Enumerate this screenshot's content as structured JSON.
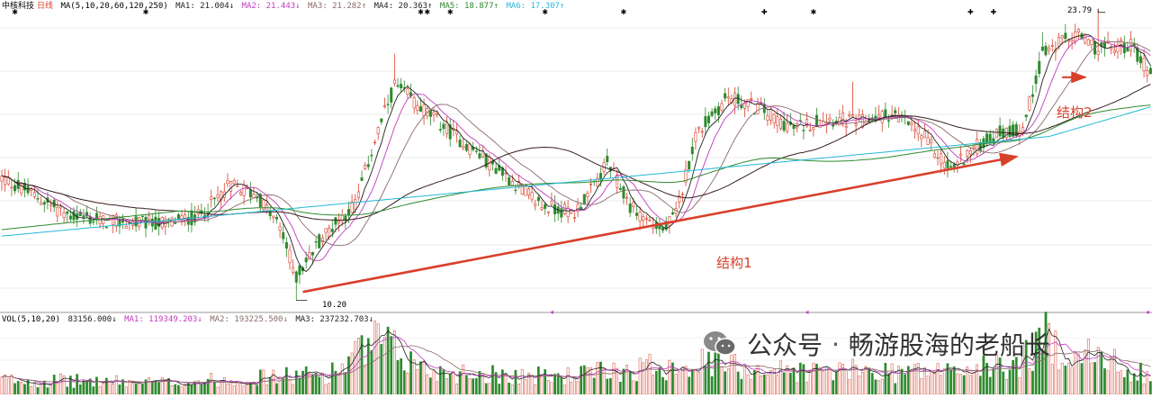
{
  "legend_main": {
    "name": "中核科技",
    "period": "日线",
    "ma_spec": "MA(5,10,20,60,120,250)",
    "items": [
      {
        "label": "MA1: 21.004↓",
        "color": "#222222"
      },
      {
        "label": "MA2: 21.443↓",
        "color": "#c03bc0"
      },
      {
        "label": "MA3: 21.282↑",
        "color": "#8a6a6a"
      },
      {
        "label": "MA4: 20.363↑",
        "color": "#222222"
      },
      {
        "label": "MA5: 18.877↑",
        "color": "#2d8a2d"
      },
      {
        "label": "MA6: 17.307↑",
        "color": "#22b8d8"
      }
    ]
  },
  "legend_volume": {
    "spec": "VOL(5,10,20)",
    "items": [
      {
        "label": "83156.000↓",
        "color": "#222222"
      },
      {
        "label": "MA1: 119349.203↓",
        "color": "#c03bc0"
      },
      {
        "label": "MA2: 193225.500↓",
        "color": "#8a6a6a"
      },
      {
        "label": "MA3: 237232.703↓",
        "color": "#222222"
      }
    ]
  },
  "annotations": {
    "structure1": "结构1",
    "structure2": "结构2",
    "high_label": "23.79",
    "low_label": "10.20"
  },
  "watermark": {
    "prefix": "公众号",
    "separator": "·",
    "author": "畅游股海的老船长"
  },
  "colors": {
    "up": "#d9402b",
    "down": "#2d8a2d",
    "ma5": "#222222",
    "ma10": "#c03bc0",
    "ma20": "#8a6a6a",
    "ma60": "#3a1f1f",
    "ma120": "#2d8a2d",
    "ma250": "#22b8d8",
    "arrow": "#d9402b"
  },
  "chart_data": {
    "type": "candlestick",
    "ticker": "中核科技",
    "period": "日线",
    "high": 23.79,
    "low": 10.2,
    "price_trajectory": [
      [
        0,
        15.9
      ],
      [
        10,
        15.1
      ],
      [
        20,
        14.2
      ],
      [
        30,
        13.9
      ],
      [
        40,
        13.8
      ],
      [
        50,
        13.8
      ],
      [
        60,
        14.1
      ],
      [
        70,
        15.6
      ],
      [
        78,
        15.1
      ],
      [
        85,
        13.6
      ],
      [
        90,
        11.3
      ],
      [
        98,
        13.2
      ],
      [
        108,
        14.7
      ],
      [
        115,
        18.1
      ],
      [
        120,
        20.2
      ],
      [
        125,
        19.6
      ],
      [
        135,
        18.3
      ],
      [
        145,
        17.1
      ],
      [
        155,
        15.9
      ],
      [
        165,
        14.6
      ],
      [
        175,
        14.3
      ],
      [
        180,
        15.3
      ],
      [
        185,
        16.6
      ],
      [
        192,
        14.6
      ],
      [
        202,
        13.4
      ],
      [
        206,
        14.2
      ],
      [
        212,
        17.9
      ],
      [
        222,
        19.7
      ],
      [
        232,
        19.1
      ],
      [
        242,
        18.2
      ],
      [
        252,
        18.7
      ],
      [
        262,
        18.5
      ],
      [
        272,
        18.9
      ],
      [
        280,
        18.1
      ],
      [
        290,
        16.3
      ],
      [
        296,
        17.2
      ],
      [
        305,
        18.0
      ],
      [
        312,
        18.2
      ],
      [
        318,
        21.7
      ],
      [
        328,
        22.6
      ],
      [
        335,
        21.9
      ],
      [
        345,
        22.1
      ],
      [
        350,
        21.0
      ]
    ],
    "volume_trajectory": [
      [
        0,
        0.25
      ],
      [
        50,
        0.2
      ],
      [
        100,
        0.35
      ],
      [
        115,
        0.9
      ],
      [
        130,
        0.4
      ],
      [
        170,
        0.3
      ],
      [
        210,
        0.55
      ],
      [
        240,
        0.4
      ],
      [
        290,
        0.4
      ],
      [
        310,
        0.5
      ],
      [
        318,
        0.95
      ],
      [
        335,
        0.6
      ],
      [
        350,
        0.35
      ]
    ],
    "trend_lines": [
      {
        "label": "结构1",
        "from": [
          92,
          10.6
        ],
        "to": [
          310,
          16.9
        ]
      },
      {
        "label": "结构2",
        "from": [
          324,
          20.6
        ],
        "to": [
          331,
          20.6
        ]
      }
    ]
  }
}
